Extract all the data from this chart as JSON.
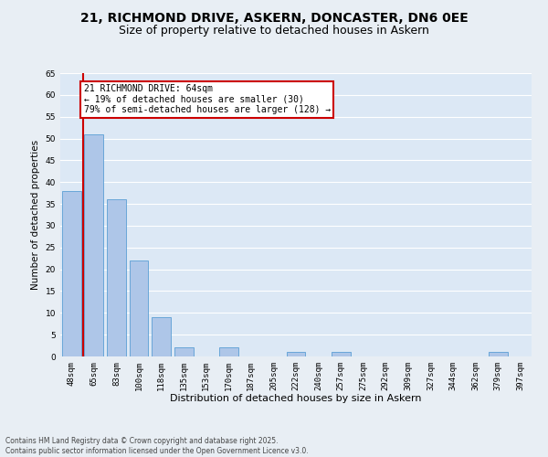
{
  "title1": "21, RICHMOND DRIVE, ASKERN, DONCASTER, DN6 0EE",
  "title2": "Size of property relative to detached houses in Askern",
  "xlabel": "Distribution of detached houses by size in Askern",
  "ylabel": "Number of detached properties",
  "footnote1": "Contains HM Land Registry data © Crown copyright and database right 2025.",
  "footnote2": "Contains public sector information licensed under the Open Government Licence v3.0.",
  "categories": [
    "48sqm",
    "65sqm",
    "83sqm",
    "100sqm",
    "118sqm",
    "135sqm",
    "153sqm",
    "170sqm",
    "187sqm",
    "205sqm",
    "222sqm",
    "240sqm",
    "257sqm",
    "275sqm",
    "292sqm",
    "309sqm",
    "327sqm",
    "344sqm",
    "362sqm",
    "379sqm",
    "397sqm"
  ],
  "values": [
    38,
    51,
    36,
    22,
    9,
    2,
    0,
    2,
    0,
    0,
    1,
    0,
    1,
    0,
    0,
    0,
    0,
    0,
    0,
    1,
    0
  ],
  "bar_color": "#aec6e8",
  "bar_edge_color": "#5a9fd4",
  "vline_color": "#cc0000",
  "annotation_text": "21 RICHMOND DRIVE: 64sqm\n← 19% of detached houses are smaller (30)\n79% of semi-detached houses are larger (128) →",
  "annotation_box_color": "#cc0000",
  "ylim": [
    0,
    65
  ],
  "yticks": [
    0,
    5,
    10,
    15,
    20,
    25,
    30,
    35,
    40,
    45,
    50,
    55,
    60,
    65
  ],
  "bg_color": "#e8eef4",
  "plot_bg_color": "#dce8f5",
  "grid_color": "#ffffff",
  "title_fontsize": 10,
  "subtitle_fontsize": 9,
  "axis_label_fontsize": 7.5,
  "tick_fontsize": 6.5,
  "annotation_fontsize": 7
}
